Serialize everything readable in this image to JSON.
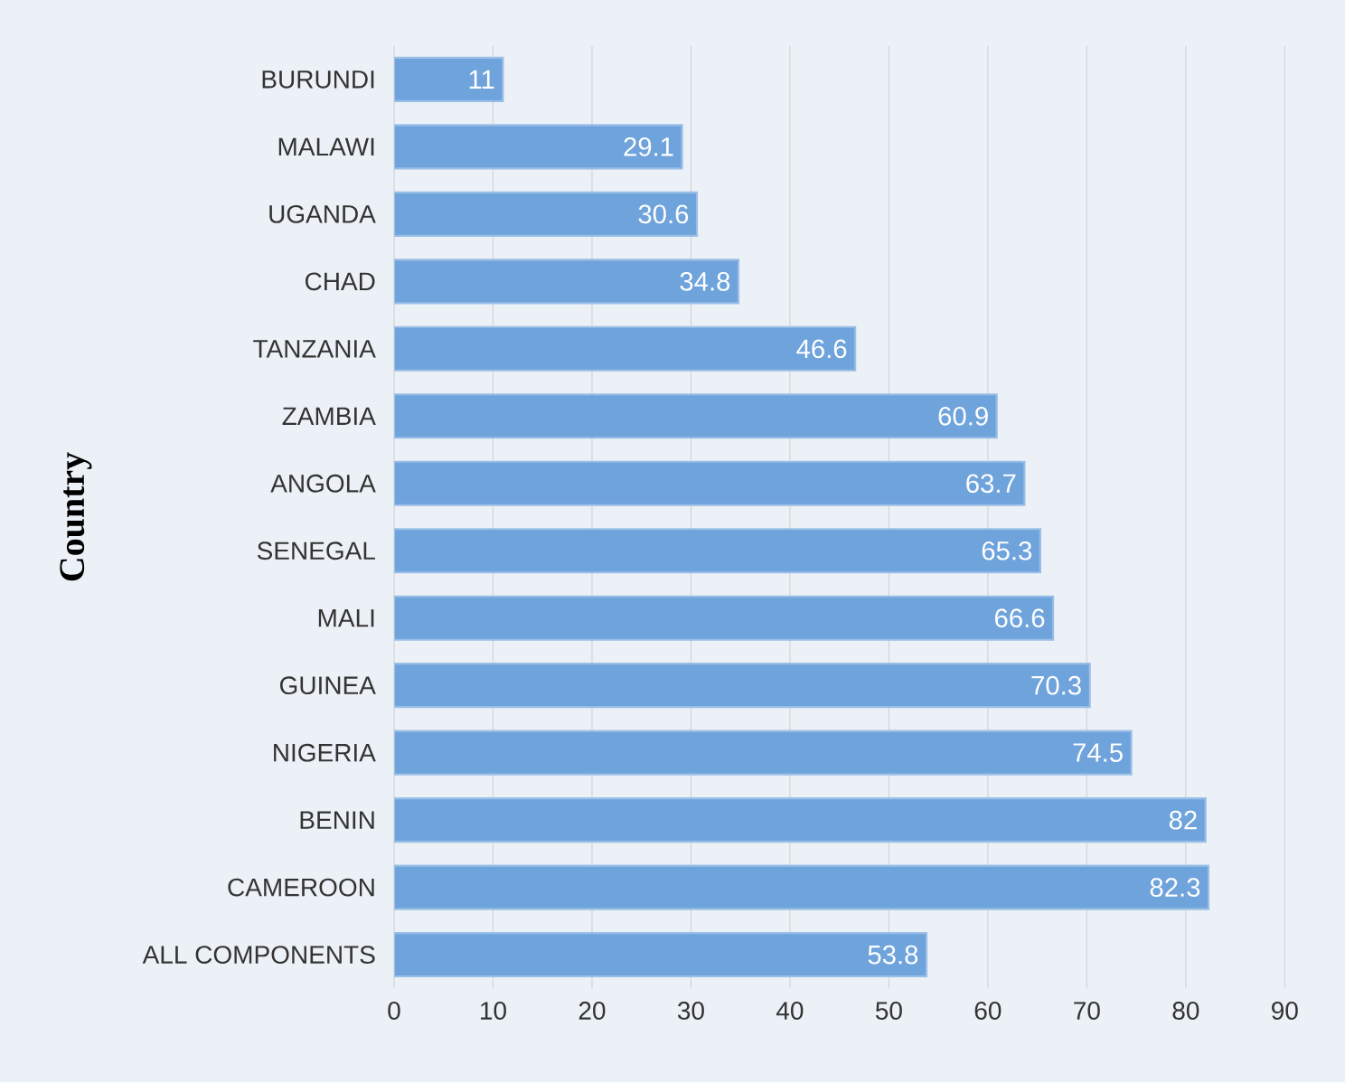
{
  "chart_data": {
    "type": "bar",
    "orientation": "horizontal",
    "ylabel": "Country",
    "categories": [
      "BURUNDI",
      "MALAWI",
      "UGANDA",
      "CHAD",
      "TANZANIA",
      "ZAMBIA",
      "ANGOLA",
      "SENEGAL",
      "MALI",
      "GUINEA",
      "NIGERIA",
      "BENIN",
      "CAMEROON",
      "ALL COMPONENTS"
    ],
    "values": [
      11,
      29.1,
      30.6,
      34.8,
      46.6,
      60.9,
      63.7,
      65.3,
      66.6,
      70.3,
      74.5,
      82,
      82.3,
      53.8
    ],
    "color": "#6fa3dc",
    "xlim": [
      0,
      90
    ],
    "xticks": [
      0,
      10,
      20,
      30,
      40,
      50,
      60,
      70,
      80,
      90
    ],
    "grid": "x",
    "data_labels": true
  }
}
